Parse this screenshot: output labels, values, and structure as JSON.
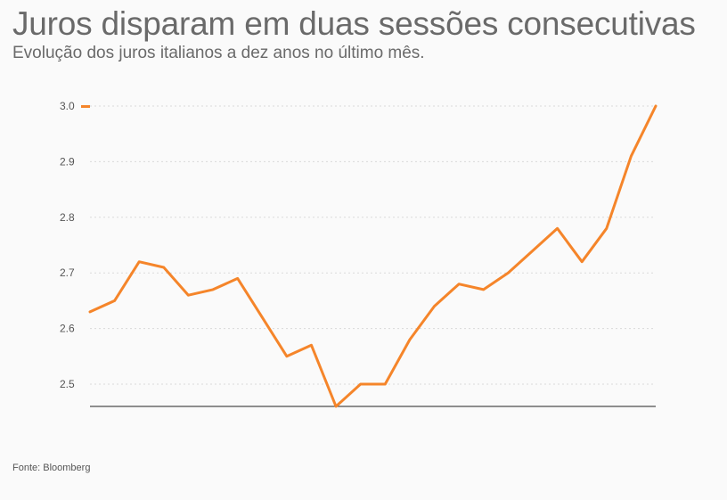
{
  "header": {
    "title": "Juros disparam em duas sessões consecutivas",
    "subtitle": "Evolução dos juros italianos a dez anos no último mês."
  },
  "footer": {
    "source": "Fonte: Bloomberg"
  },
  "colors": {
    "line": "#f5852a",
    "grid": "#d9d9d9",
    "axis": "#222222"
  },
  "chart_data": {
    "type": "line",
    "title": "Juros disparam em duas sessões consecutivas",
    "subtitle": "Evolução dos juros italianos a dez anos no último mês.",
    "xlabel": "",
    "ylabel": "",
    "ylim": [
      2.46,
      3.0
    ],
    "grid": true,
    "y_ticks": [
      "2.5",
      "2.6",
      "2.7",
      "2.8",
      "2.9",
      "3.0"
    ],
    "series": [
      {
        "values": [
          2.63,
          2.65,
          2.72,
          2.71,
          2.66,
          2.67,
          2.69,
          2.62,
          2.55,
          2.57,
          2.46,
          2.5,
          2.5,
          2.58,
          2.64,
          2.68,
          2.67,
          2.7,
          2.74,
          2.78,
          2.72,
          2.78,
          2.91,
          3.0
        ]
      }
    ]
  }
}
